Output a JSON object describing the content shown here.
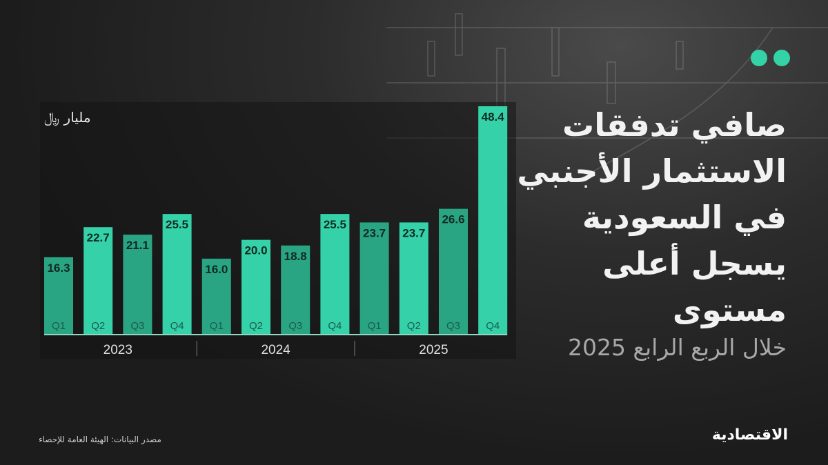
{
  "title_lines": [
    "صافي تدفقات",
    "الاستثمار الأجنبي",
    "في السعودية",
    "يسجل أعلى",
    "مستوى"
  ],
  "subtitle": "خلال الربع الرابع 2025",
  "unit": "مليار ﷼",
  "source": "مصدر البيانات: الهيئة العامة للإحصاء",
  "brand": "الاقتصادية",
  "colors": {
    "bar_dark": "#2aa584",
    "bar_light": "#35d2a9",
    "accent_dots": "#34d3a7"
  },
  "chart_data": {
    "type": "bar",
    "unit": "مليار ﷼",
    "groups": [
      "2023",
      "2024",
      "2025"
    ],
    "categories": [
      "Q1",
      "Q2",
      "Q3",
      "Q4",
      "Q1",
      "Q2",
      "Q3",
      "Q4",
      "Q1",
      "Q2",
      "Q3",
      "Q4"
    ],
    "group_of": [
      "2023",
      "2023",
      "2023",
      "2023",
      "2024",
      "2024",
      "2024",
      "2024",
      "2025",
      "2025",
      "2025",
      "2025"
    ],
    "values": [
      16.3,
      22.7,
      21.1,
      25.5,
      16.0,
      20.0,
      18.8,
      25.5,
      23.7,
      23.7,
      26.6,
      48.4
    ],
    "labels": [
      "16.3",
      "22.7",
      "21.1",
      "25.5",
      "16.0",
      "20.0",
      "18.8",
      "25.5",
      "23.7",
      "23.7",
      "26.6",
      "48.4"
    ],
    "ylim": [
      0,
      48.4
    ],
    "grid": false
  }
}
